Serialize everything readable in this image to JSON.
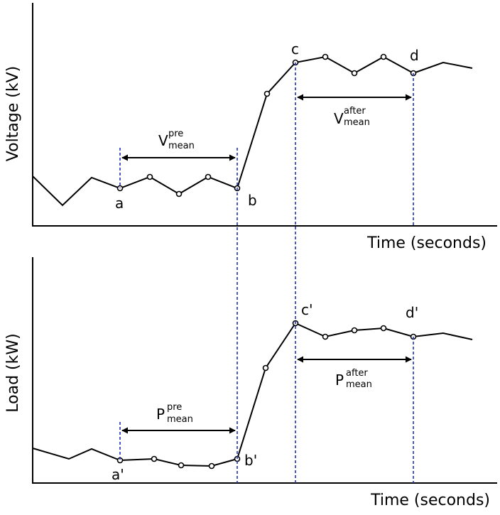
{
  "top_panel": {
    "ylabel": "Voltage (kV)",
    "xlabel": "Time (seconds)",
    "points": {
      "a": "a",
      "b": "b",
      "c": "c",
      "d": "d"
    },
    "pre": {
      "base": "V",
      "sup": "pre",
      "sub": "mean"
    },
    "after": {
      "base": "V",
      "sup": "after",
      "sub": "mean"
    }
  },
  "bottom_panel": {
    "ylabel": "Load (kW)",
    "xlabel": "Time (seconds)",
    "points": {
      "a": "a'",
      "b": "b'",
      "c": "c'",
      "d": "d'"
    },
    "pre": {
      "base": "P",
      "sup": "pre",
      "sub": "mean"
    },
    "after": {
      "base": "P",
      "sup": "after",
      "sub": "mean"
    }
  },
  "colors": {
    "guide": "#1f2fbf",
    "line": "#000000"
  }
}
